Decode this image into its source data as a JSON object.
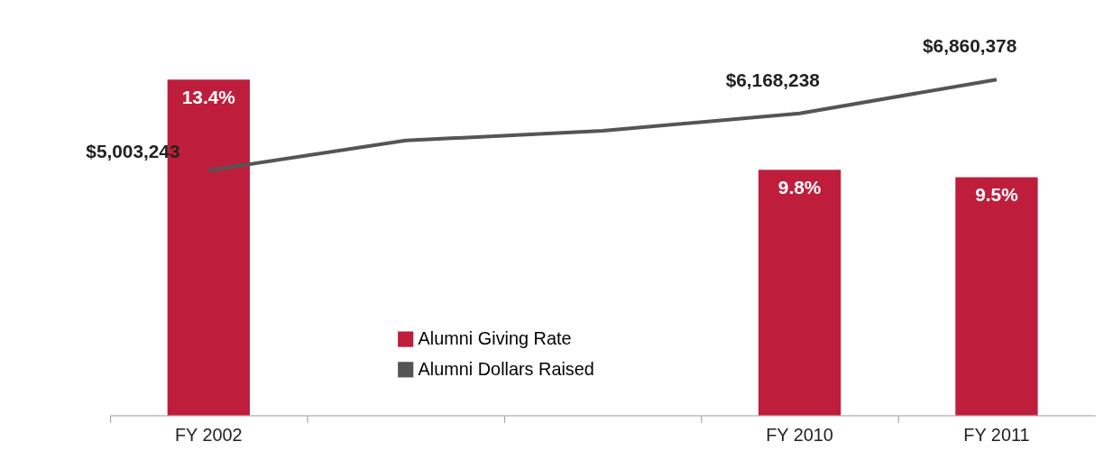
{
  "chart_data": {
    "type": "bar",
    "categories": [
      "FY 2002",
      null,
      null,
      "FY 2010",
      "FY 2011"
    ],
    "series": [
      {
        "name": "Alumni Giving Rate",
        "color": "#be1e3c",
        "values": [
          13.4,
          null,
          null,
          9.8,
          9.5
        ],
        "value_labels": [
          "13.4%",
          null,
          null,
          "9.8%",
          "9.5%"
        ]
      },
      {
        "name": "Alumni Dollars Raised",
        "type": "line",
        "axis": "y2",
        "color": "#555555",
        "values": [
          5003243,
          5614000,
          5813000,
          6168238,
          6860378
        ],
        "value_labels": [
          "$5,003,243",
          null,
          null,
          "$6,168,238",
          "$6,860,378"
        ]
      }
    ],
    "tick_labels": "x",
    "legend": "bottom",
    "grid": false
  }
}
